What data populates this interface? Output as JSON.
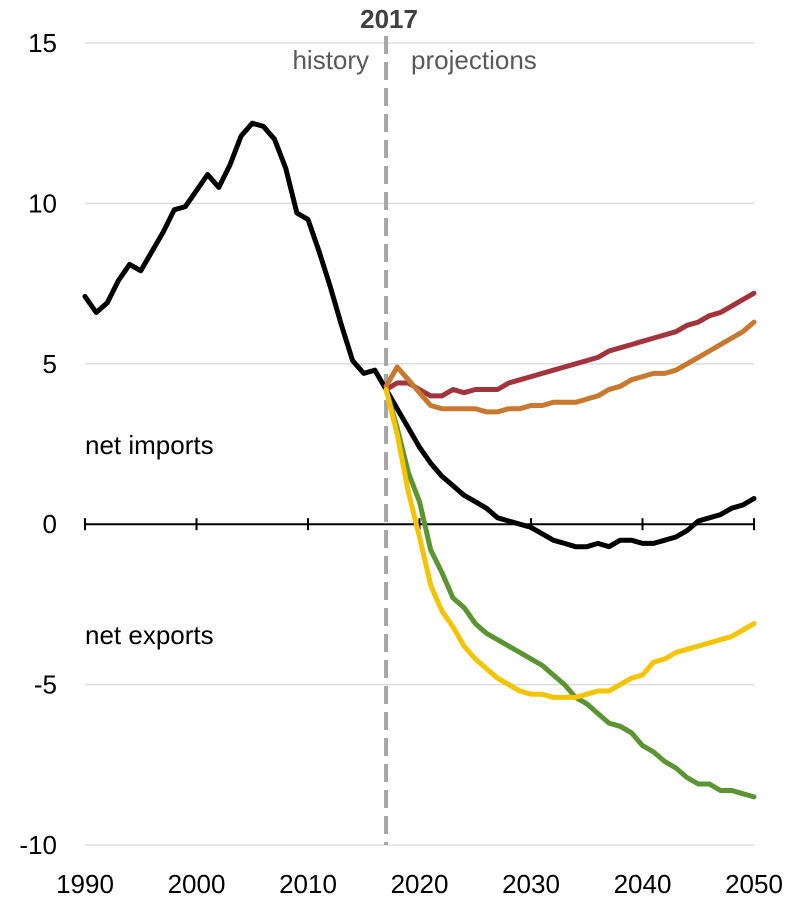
{
  "chart_data": {
    "type": "line",
    "title": "",
    "xlabel": "",
    "ylabel": "",
    "xlim": [
      1990,
      2050
    ],
    "ylim": [
      -10,
      15
    ],
    "x_ticks": [
      1990,
      2000,
      2010,
      2020,
      2030,
      2040,
      2050
    ],
    "y_ticks": [
      15,
      10,
      5,
      0,
      -5,
      -10
    ],
    "grid": "horizontal",
    "annotations": {
      "year_marker": {
        "x": 2017,
        "label": "2017"
      },
      "history_label": "history",
      "projections_label": "projections",
      "net_imports_label": "net imports",
      "net_exports_label": "net exports"
    },
    "colors": {
      "history": "#000000",
      "red": "#A3333D",
      "orange": "#C8782F",
      "green": "#5A9531",
      "yellow": "#F5C400",
      "grid": "#D9D9D9",
      "marker": "#A6A6A6"
    },
    "series": [
      {
        "color_key": "history",
        "points": [
          [
            1990,
            7.1
          ],
          [
            1991,
            6.6
          ],
          [
            1992,
            6.9
          ],
          [
            1993,
            7.6
          ],
          [
            1994,
            8.1
          ],
          [
            1995,
            7.9
          ],
          [
            1996,
            8.5
          ],
          [
            1997,
            9.1
          ],
          [
            1998,
            9.8
          ],
          [
            1999,
            9.9
          ],
          [
            2000,
            10.4
          ],
          [
            2001,
            10.9
          ],
          [
            2002,
            10.5
          ],
          [
            2003,
            11.2
          ],
          [
            2004,
            12.1
          ],
          [
            2005,
            12.5
          ],
          [
            2006,
            12.4
          ],
          [
            2007,
            12.0
          ],
          [
            2008,
            11.1
          ],
          [
            2009,
            9.7
          ],
          [
            2010,
            9.5
          ],
          [
            2011,
            8.5
          ],
          [
            2012,
            7.4
          ],
          [
            2013,
            6.2
          ],
          [
            2014,
            5.1
          ],
          [
            2015,
            4.7
          ],
          [
            2016,
            4.8
          ],
          [
            2017,
            4.2
          ],
          [
            2018,
            3.6
          ],
          [
            2019,
            3.0
          ],
          [
            2020,
            2.4
          ],
          [
            2021,
            1.9
          ],
          [
            2022,
            1.5
          ],
          [
            2023,
            1.2
          ],
          [
            2024,
            0.9
          ],
          [
            2025,
            0.7
          ],
          [
            2026,
            0.5
          ],
          [
            2027,
            0.2
          ],
          [
            2028,
            0.1
          ],
          [
            2029,
            0.0
          ],
          [
            2030,
            -0.1
          ],
          [
            2031,
            -0.3
          ],
          [
            2032,
            -0.5
          ],
          [
            2033,
            -0.6
          ],
          [
            2034,
            -0.7
          ],
          [
            2035,
            -0.7
          ],
          [
            2036,
            -0.6
          ],
          [
            2037,
            -0.7
          ],
          [
            2038,
            -0.5
          ],
          [
            2039,
            -0.5
          ],
          [
            2040,
            -0.6
          ],
          [
            2041,
            -0.6
          ],
          [
            2042,
            -0.5
          ],
          [
            2043,
            -0.4
          ],
          [
            2044,
            -0.2
          ],
          [
            2045,
            0.1
          ],
          [
            2046,
            0.2
          ],
          [
            2047,
            0.3
          ],
          [
            2048,
            0.5
          ],
          [
            2049,
            0.6
          ],
          [
            2050,
            0.8
          ]
        ]
      },
      {
        "color_key": "red",
        "points": [
          [
            2017,
            4.2
          ],
          [
            2018,
            4.4
          ],
          [
            2019,
            4.4
          ],
          [
            2020,
            4.2
          ],
          [
            2021,
            4.0
          ],
          [
            2022,
            4.0
          ],
          [
            2023,
            4.2
          ],
          [
            2024,
            4.1
          ],
          [
            2025,
            4.2
          ],
          [
            2026,
            4.2
          ],
          [
            2027,
            4.2
          ],
          [
            2028,
            4.4
          ],
          [
            2029,
            4.5
          ],
          [
            2030,
            4.6
          ],
          [
            2031,
            4.7
          ],
          [
            2032,
            4.8
          ],
          [
            2033,
            4.9
          ],
          [
            2034,
            5.0
          ],
          [
            2035,
            5.1
          ],
          [
            2036,
            5.2
          ],
          [
            2037,
            5.4
          ],
          [
            2038,
            5.5
          ],
          [
            2039,
            5.6
          ],
          [
            2040,
            5.7
          ],
          [
            2041,
            5.8
          ],
          [
            2042,
            5.9
          ],
          [
            2043,
            6.0
          ],
          [
            2044,
            6.2
          ],
          [
            2045,
            6.3
          ],
          [
            2046,
            6.5
          ],
          [
            2047,
            6.6
          ],
          [
            2048,
            6.8
          ],
          [
            2049,
            7.0
          ],
          [
            2050,
            7.2
          ]
        ]
      },
      {
        "color_key": "orange",
        "points": [
          [
            2017,
            4.3
          ],
          [
            2018,
            4.9
          ],
          [
            2019,
            4.5
          ],
          [
            2020,
            4.1
          ],
          [
            2021,
            3.7
          ],
          [
            2022,
            3.6
          ],
          [
            2023,
            3.6
          ],
          [
            2024,
            3.6
          ],
          [
            2025,
            3.6
          ],
          [
            2026,
            3.5
          ],
          [
            2027,
            3.5
          ],
          [
            2028,
            3.6
          ],
          [
            2029,
            3.6
          ],
          [
            2030,
            3.7
          ],
          [
            2031,
            3.7
          ],
          [
            2032,
            3.8
          ],
          [
            2033,
            3.8
          ],
          [
            2034,
            3.8
          ],
          [
            2035,
            3.9
          ],
          [
            2036,
            4.0
          ],
          [
            2037,
            4.2
          ],
          [
            2038,
            4.3
          ],
          [
            2039,
            4.5
          ],
          [
            2040,
            4.6
          ],
          [
            2041,
            4.7
          ],
          [
            2042,
            4.7
          ],
          [
            2043,
            4.8
          ],
          [
            2044,
            5.0
          ],
          [
            2045,
            5.2
          ],
          [
            2046,
            5.4
          ],
          [
            2047,
            5.6
          ],
          [
            2048,
            5.8
          ],
          [
            2049,
            6.0
          ],
          [
            2050,
            6.3
          ]
        ]
      },
      {
        "color_key": "green",
        "points": [
          [
            2017,
            4.2
          ],
          [
            2018,
            3.0
          ],
          [
            2019,
            1.6
          ],
          [
            2020,
            0.7
          ],
          [
            2021,
            -0.8
          ],
          [
            2022,
            -1.5
          ],
          [
            2023,
            -2.3
          ],
          [
            2024,
            -2.6
          ],
          [
            2025,
            -3.1
          ],
          [
            2026,
            -3.4
          ],
          [
            2027,
            -3.6
          ],
          [
            2028,
            -3.8
          ],
          [
            2029,
            -4.0
          ],
          [
            2030,
            -4.2
          ],
          [
            2031,
            -4.4
          ],
          [
            2032,
            -4.7
          ],
          [
            2033,
            -5.0
          ],
          [
            2034,
            -5.4
          ],
          [
            2035,
            -5.6
          ],
          [
            2036,
            -5.9
          ],
          [
            2037,
            -6.2
          ],
          [
            2038,
            -6.3
          ],
          [
            2039,
            -6.5
          ],
          [
            2040,
            -6.9
          ],
          [
            2041,
            -7.1
          ],
          [
            2042,
            -7.4
          ],
          [
            2043,
            -7.6
          ],
          [
            2044,
            -7.9
          ],
          [
            2045,
            -8.1
          ],
          [
            2046,
            -8.1
          ],
          [
            2047,
            -8.3
          ],
          [
            2048,
            -8.3
          ],
          [
            2049,
            -8.4
          ],
          [
            2050,
            -8.5
          ]
        ]
      },
      {
        "color_key": "yellow",
        "points": [
          [
            2017,
            4.2
          ],
          [
            2018,
            2.8
          ],
          [
            2019,
            1.0
          ],
          [
            2020,
            -0.4
          ],
          [
            2021,
            -1.9
          ],
          [
            2022,
            -2.7
          ],
          [
            2023,
            -3.2
          ],
          [
            2024,
            -3.8
          ],
          [
            2025,
            -4.2
          ],
          [
            2026,
            -4.5
          ],
          [
            2027,
            -4.8
          ],
          [
            2028,
            -5.0
          ],
          [
            2029,
            -5.2
          ],
          [
            2030,
            -5.3
          ],
          [
            2031,
            -5.3
          ],
          [
            2032,
            -5.4
          ],
          [
            2033,
            -5.4
          ],
          [
            2034,
            -5.4
          ],
          [
            2035,
            -5.3
          ],
          [
            2036,
            -5.2
          ],
          [
            2037,
            -5.2
          ],
          [
            2038,
            -5.0
          ],
          [
            2039,
            -4.8
          ],
          [
            2040,
            -4.7
          ],
          [
            2041,
            -4.3
          ],
          [
            2042,
            -4.2
          ],
          [
            2043,
            -4.0
          ],
          [
            2044,
            -3.9
          ],
          [
            2045,
            -3.8
          ],
          [
            2046,
            -3.7
          ],
          [
            2047,
            -3.6
          ],
          [
            2048,
            -3.5
          ],
          [
            2049,
            -3.3
          ],
          [
            2050,
            -3.1
          ]
        ]
      }
    ]
  }
}
